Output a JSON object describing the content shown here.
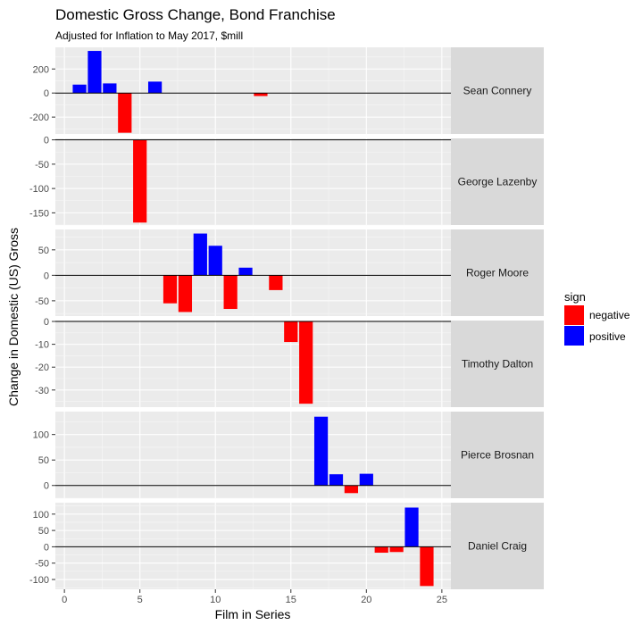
{
  "chart_data": {
    "type": "bar",
    "title": "Domestic Gross Change, Bond Franchise",
    "subtitle": "Adjusted for Inflation to May 2017, $mill",
    "xlabel": "Film in Series",
    "ylabel": "Change in Domestic (US) Gross",
    "xlim": [
      -0.6,
      25.6
    ],
    "x_ticks": [
      0,
      5,
      10,
      15,
      20,
      25
    ],
    "legend": {
      "title": "sign",
      "position": "right",
      "entries": [
        {
          "name": "negative",
          "color": "#ff0000"
        },
        {
          "name": "positive",
          "color": "#0000ff"
        }
      ]
    },
    "grid": true,
    "facets": [
      {
        "label": "Sean Connery",
        "ylim": [
          -340,
          380
        ],
        "ticks": [
          -200,
          0,
          200
        ],
        "bars": [
          {
            "x": 1,
            "y": 70
          },
          {
            "x": 2,
            "y": 350
          },
          {
            "x": 3,
            "y": 80
          },
          {
            "x": 4,
            "y": -330
          },
          {
            "x": 6,
            "y": 95
          },
          {
            "x": 13,
            "y": -25
          }
        ]
      },
      {
        "label": "George Lazenby",
        "ylim": [
          -175,
          3
        ],
        "ticks": [
          -150,
          -100,
          -50,
          0
        ],
        "bars": [
          {
            "x": 5,
            "y": -170
          }
        ]
      },
      {
        "label": "Roger Moore",
        "ylim": [
          -80,
          90
        ],
        "ticks": [
          -50,
          0,
          50
        ],
        "bars": [
          {
            "x": 7,
            "y": -55
          },
          {
            "x": 8,
            "y": -72
          },
          {
            "x": 9,
            "y": 82
          },
          {
            "x": 10,
            "y": 58
          },
          {
            "x": 11,
            "y": -66
          },
          {
            "x": 12,
            "y": 15
          },
          {
            "x": 14,
            "y": -29
          }
        ]
      },
      {
        "label": "Timothy Dalton",
        "ylim": [
          -37.5,
          0.4
        ],
        "ticks": [
          -30,
          -20,
          -10,
          0
        ],
        "bars": [
          {
            "x": 15,
            "y": -9
          },
          {
            "x": 16,
            "y": -36
          }
        ]
      },
      {
        "label": "Pierce Brosnan",
        "ylim": [
          -25,
          145
        ],
        "ticks": [
          0,
          50,
          100
        ],
        "bars": [
          {
            "x": 17,
            "y": 135
          },
          {
            "x": 18,
            "y": 22
          },
          {
            "x": 19,
            "y": -15
          },
          {
            "x": 20,
            "y": 23
          }
        ]
      },
      {
        "label": "Daniel Craig",
        "ylim": [
          -130,
          135
        ],
        "ticks": [
          -100,
          -50,
          0,
          50,
          100
        ],
        "bars": [
          {
            "x": 21,
            "y": -18
          },
          {
            "x": 22,
            "y": -16
          },
          {
            "x": 23,
            "y": 120
          },
          {
            "x": 24,
            "y": -120
          }
        ]
      }
    ]
  }
}
